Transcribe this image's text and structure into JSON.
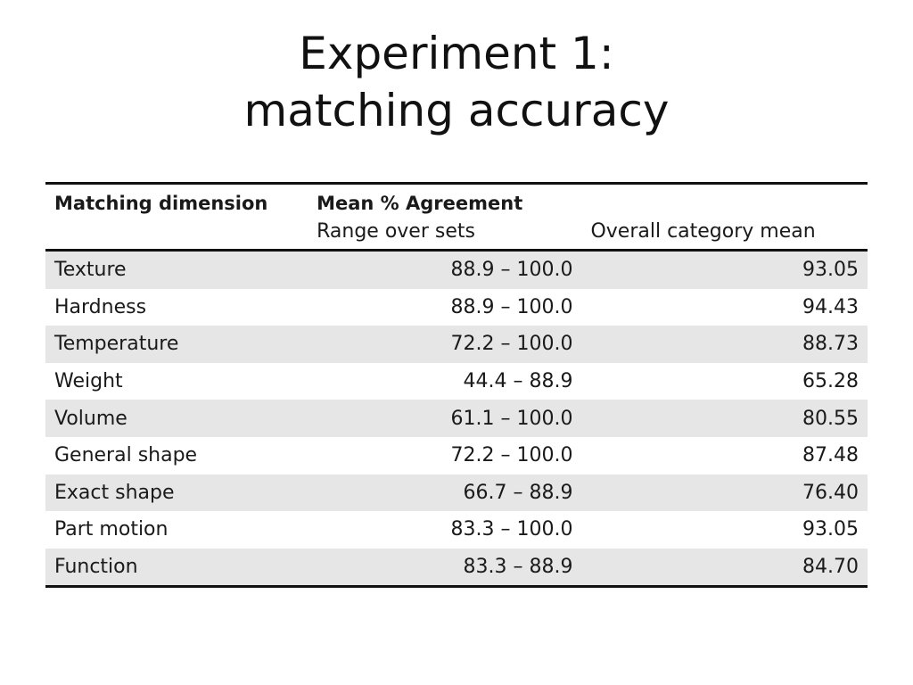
{
  "title": {
    "line1": "Experiment 1:",
    "line2": "matching accuracy"
  },
  "table": {
    "headers": {
      "dimension": "Matching dimension",
      "group": "Mean % Agreement",
      "range": "Range over sets",
      "overall": "Overall category mean"
    },
    "rows": [
      {
        "dimension": "Texture",
        "range": "88.9 – 100.0",
        "mean": "93.05"
      },
      {
        "dimension": "Hardness",
        "range": "88.9 – 100.0",
        "mean": "94.43"
      },
      {
        "dimension": "Temperature",
        "range": "72.2 – 100.0",
        "mean": "88.73"
      },
      {
        "dimension": "Weight",
        "range": "44.4 – 88.9",
        "mean": "65.28"
      },
      {
        "dimension": "Volume",
        "range": "61.1 – 100.0",
        "mean": "80.55"
      },
      {
        "dimension": "General shape",
        "range": "72.2 – 100.0",
        "mean": "87.48"
      },
      {
        "dimension": "Exact shape",
        "range": "66.7 – 88.9",
        "mean": "76.40"
      },
      {
        "dimension": "Part motion",
        "range": "83.3 – 100.0",
        "mean": "93.05"
      },
      {
        "dimension": "Function",
        "range": "83.3 – 88.9",
        "mean": "84.70"
      }
    ]
  },
  "colors": {
    "row_stripe": "#e6e6e6",
    "rule": "#111111"
  }
}
